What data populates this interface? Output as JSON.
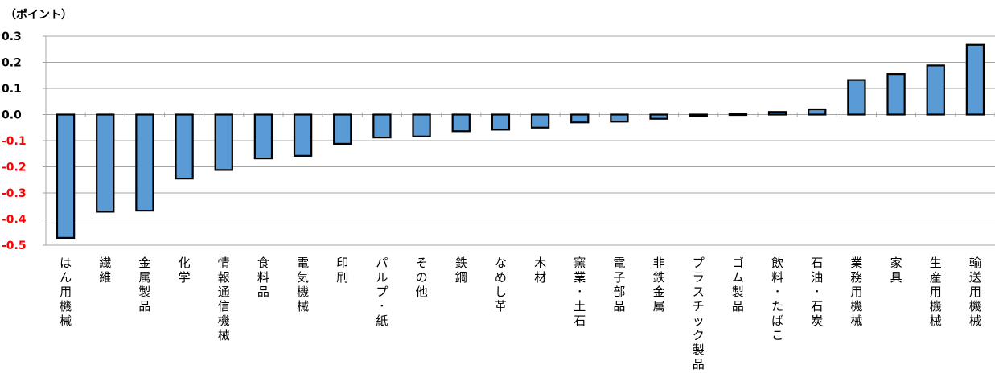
{
  "chart_data": {
    "type": "bar",
    "ylabel": "（ポイント）",
    "ylim": [
      -0.5,
      0.3
    ],
    "yticks": [
      0.3,
      0.2,
      0.1,
      0.0,
      -0.1,
      -0.2,
      -0.3,
      -0.4,
      -0.5
    ],
    "ytick_labels": [
      "0.3",
      "0.2",
      "0.1",
      "0.0",
      "-0.1",
      "-0.2",
      "-0.3",
      "-0.4",
      "-0.5"
    ],
    "grid": true,
    "categories": [
      "はん用機械",
      "繊維",
      "金属製品",
      "化学",
      "情報通信機械",
      "食料品",
      "電気機械",
      "印刷",
      "パルプ･紙",
      "その他",
      "鉄鋼",
      "なめし革",
      "木材",
      "窯業･土石",
      "電子部品",
      "非鉄金属",
      "プラスチック製品",
      "ゴム製品",
      "飲料･たばこ",
      "石油･石炭",
      "業務用機械",
      "家具",
      "生産用機械",
      "輸送用機械"
    ],
    "values": [
      -0.472,
      -0.372,
      -0.368,
      -0.245,
      -0.212,
      -0.168,
      -0.158,
      -0.112,
      -0.088,
      -0.084,
      -0.064,
      -0.058,
      -0.05,
      -0.03,
      -0.027,
      -0.016,
      -0.005,
      0.003,
      0.01,
      0.02,
      0.132,
      0.155,
      0.188,
      0.267
    ]
  },
  "colors": {
    "bar_fill": "#5b9bd5",
    "bar_stroke": "#000000",
    "positive_tick": "#000000",
    "negative_tick": "#ff0000",
    "grid": "#a6a6a6"
  }
}
